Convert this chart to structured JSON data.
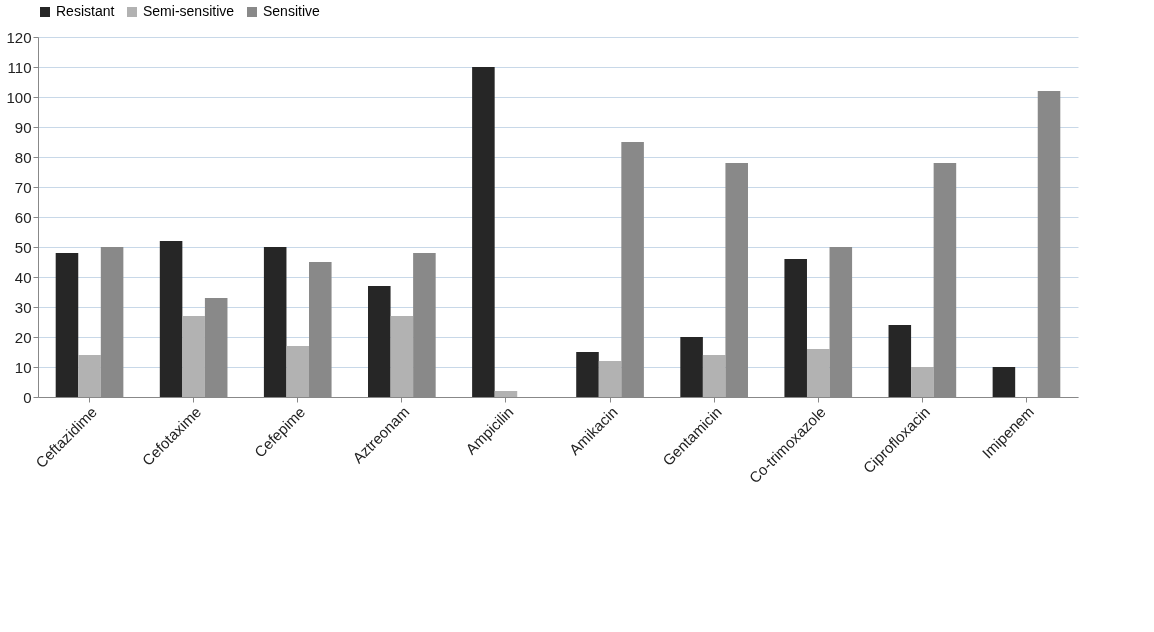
{
  "chart_data": {
    "type": "bar",
    "categories": [
      "Ceftazidime",
      "Cefotaxime",
      "Cefepime",
      "Aztreonam",
      "Ampicilin",
      "Amikacin",
      "Gentamicin",
      "Co-trimoxazole",
      "Ciprofloxacin",
      "Imipenem"
    ],
    "series": [
      {
        "name": "Resistant",
        "color": "#262626",
        "values": [
          48,
          52,
          50,
          37,
          110,
          15,
          20,
          46,
          24,
          10
        ]
      },
      {
        "name": "Semi-sensitive",
        "color": "#b2b2b2",
        "values": [
          14,
          27,
          17,
          27,
          2,
          12,
          14,
          16,
          10,
          0
        ]
      },
      {
        "name": "Sensitive",
        "color": "#898989",
        "values": [
          50,
          33,
          45,
          48,
          0,
          85,
          78,
          50,
          78,
          102
        ]
      }
    ],
    "ylim": [
      0,
      120
    ],
    "yticks": [
      0,
      10,
      20,
      30,
      40,
      50,
      60,
      70,
      80,
      90,
      100,
      110,
      120
    ],
    "grid": "y",
    "legend": "top"
  }
}
